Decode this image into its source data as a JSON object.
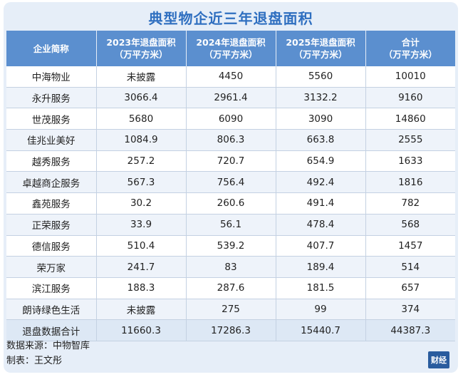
{
  "title": "典型物企近三年退盘面积",
  "header": {
    "company": "企业简称",
    "y2023": [
      "2023年退盘面积",
      "（万平方米）"
    ],
    "y2024": [
      "2024年退盘面积",
      "（万平方米）"
    ],
    "y2025": [
      "2025年退盘面积",
      "（万平方米）"
    ],
    "total": [
      "合计",
      "（万平方米）"
    ]
  },
  "rows": [
    {
      "name": "中海物业",
      "y2023": "未披露",
      "y2024": "4450",
      "y2025": "5560",
      "total": "10010"
    },
    {
      "name": "永升服务",
      "y2023": "3066.4",
      "y2024": "2961.4",
      "y2025": "3132.2",
      "total": "9160"
    },
    {
      "name": "世茂服务",
      "y2023": "5680",
      "y2024": "6090",
      "y2025": "3090",
      "total": "14860"
    },
    {
      "name": "佳兆业美好",
      "y2023": "1084.9",
      "y2024": "806.3",
      "y2025": "663.8",
      "total": "2555"
    },
    {
      "name": "越秀服务",
      "y2023": "257.2",
      "y2024": "720.7",
      "y2025": "654.9",
      "total": "1633"
    },
    {
      "name": "卓越商企服务",
      "y2023": "567.3",
      "y2024": "756.4",
      "y2025": "492.4",
      "total": "1816"
    },
    {
      "name": "鑫苑服务",
      "y2023": "30.2",
      "y2024": "260.6",
      "y2025": "491.4",
      "total": "782"
    },
    {
      "name": "正荣服务",
      "y2023": "33.9",
      "y2024": "56.1",
      "y2025": "478.4",
      "total": "568"
    },
    {
      "name": "德信服务",
      "y2023": "510.4",
      "y2024": "539.2",
      "y2025": "407.7",
      "total": "1457"
    },
    {
      "name": "荣万家",
      "y2023": "241.7",
      "y2024": "83",
      "y2025": "189.4",
      "total": "514"
    },
    {
      "name": "滨江服务",
      "y2023": "188.3",
      "y2024": "287.6",
      "y2025": "181.5",
      "total": "657"
    },
    {
      "name": "朗诗绿色生活",
      "y2023": "未披露",
      "y2024": "275",
      "y2025": "99",
      "total": "374"
    },
    {
      "name": "退盘数据合计",
      "y2023": "11660.3",
      "y2024": "17286.3",
      "y2025": "15440.7",
      "total": "44387.3"
    }
  ],
  "footer": {
    "source": "数据来源：中物智库",
    "author": "制表：王文彤"
  },
  "logo_text": "财经"
}
